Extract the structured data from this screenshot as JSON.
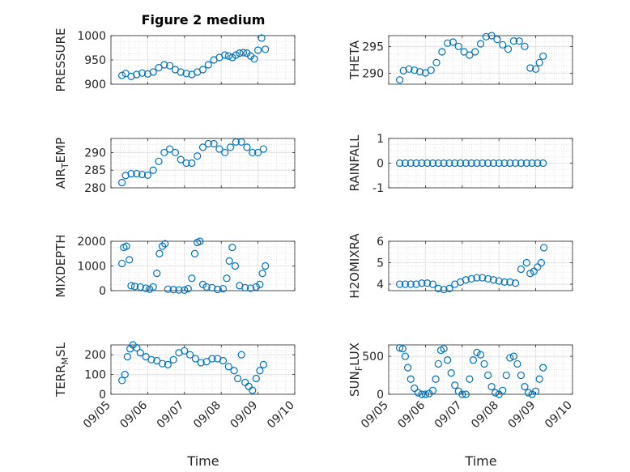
{
  "figure": {
    "xlabel": "Time",
    "xtick_labels": [
      "09/05",
      "09/06",
      "09/07",
      "09/08",
      "09/09",
      "09/10"
    ],
    "marker_color": "#0072BD"
  },
  "chart_data": [
    {
      "type": "scatter",
      "title": "Figure 2 medium",
      "ylabel": "PRESSURE",
      "ylim": [
        900,
        1000
      ],
      "yticks": [
        900,
        950,
        1000
      ],
      "xlim": [
        0,
        5
      ],
      "grid": true,
      "x": [
        0.3,
        0.4,
        0.55,
        0.7,
        0.85,
        1.0,
        1.15,
        1.3,
        1.45,
        1.6,
        1.75,
        1.9,
        2.05,
        2.2,
        2.35,
        2.5,
        2.65,
        2.8,
        2.95,
        3.1,
        3.2,
        3.3,
        3.4,
        3.5,
        3.6,
        3.7,
        3.8,
        3.9,
        4.0,
        4.1,
        4.2
      ],
      "y": [
        918,
        922,
        916,
        920,
        923,
        921,
        925,
        934,
        940,
        938,
        930,
        925,
        922,
        920,
        925,
        930,
        940,
        950,
        955,
        960,
        958,
        955,
        960,
        964,
        965,
        964,
        958,
        952,
        970,
        995,
        972
      ]
    },
    {
      "type": "scatter",
      "ylabel": "THETA",
      "ylim": [
        288,
        297
      ],
      "yticks": [
        290,
        295
      ],
      "xlim": [
        0,
        5
      ],
      "grid": true,
      "x": [
        0.3,
        0.4,
        0.55,
        0.7,
        0.85,
        1.0,
        1.15,
        1.3,
        1.45,
        1.6,
        1.75,
        1.9,
        2.05,
        2.2,
        2.35,
        2.5,
        2.65,
        2.8,
        2.95,
        3.1,
        3.25,
        3.4,
        3.55,
        3.7,
        3.85,
        4.0,
        4.1,
        4.2
      ],
      "y": [
        288.8,
        290.5,
        290.8,
        290.6,
        290.3,
        290.1,
        290.6,
        292.0,
        294.0,
        295.6,
        295.8,
        295.0,
        294.0,
        293.4,
        294.0,
        295.5,
        296.8,
        297.0,
        296.3,
        295.3,
        294.5,
        296.0,
        296.0,
        295.0,
        291.0,
        290.8,
        292.0,
        293.2
      ]
    },
    {
      "type": "scatter",
      "ylabel": "AIR_TEMP",
      "ylim": [
        280,
        294
      ],
      "yticks": [
        280,
        285,
        290
      ],
      "xlim": [
        0,
        5
      ],
      "grid": true,
      "x": [
        0.3,
        0.4,
        0.55,
        0.7,
        0.85,
        1.0,
        1.15,
        1.3,
        1.45,
        1.6,
        1.75,
        1.9,
        2.05,
        2.2,
        2.35,
        2.5,
        2.65,
        2.8,
        2.95,
        3.1,
        3.25,
        3.4,
        3.55,
        3.7,
        3.85,
        4.0,
        4.15
      ],
      "y": [
        281.5,
        283.5,
        284.0,
        284.0,
        283.8,
        283.6,
        285.0,
        287.5,
        290.0,
        291.0,
        290.0,
        288.0,
        287.0,
        287.0,
        289.0,
        291.5,
        292.5,
        292.5,
        291.0,
        290.0,
        291.5,
        293.0,
        293.0,
        291.5,
        290.0,
        290.0,
        291.0
      ]
    },
    {
      "type": "scatter",
      "ylabel": "RAINFALL",
      "ylim": [
        -1,
        1
      ],
      "yticks": [
        -1,
        0,
        1
      ],
      "xlim": [
        0,
        5
      ],
      "grid": true,
      "x": [
        0.3,
        0.45,
        0.6,
        0.75,
        0.9,
        1.05,
        1.2,
        1.35,
        1.5,
        1.65,
        1.8,
        1.95,
        2.1,
        2.25,
        2.4,
        2.55,
        2.7,
        2.85,
        3.0,
        3.15,
        3.3,
        3.45,
        3.6,
        3.75,
        3.9,
        4.05,
        4.2
      ],
      "y": [
        0,
        0,
        0,
        0,
        0,
        0,
        0,
        0,
        0,
        0,
        0,
        0,
        0,
        0,
        0,
        0,
        0,
        0,
        0,
        0,
        0,
        0,
        0,
        0,
        0,
        0,
        0
      ]
    },
    {
      "type": "scatter",
      "ylabel": "MIXDEPTH",
      "ylim": [
        0,
        2000
      ],
      "yticks": [
        0,
        1000,
        2000
      ],
      "xlim": [
        0,
        5
      ],
      "grid": true,
      "x": [
        0.3,
        0.35,
        0.42,
        0.5,
        0.55,
        0.65,
        0.8,
        0.95,
        1.05,
        1.15,
        1.25,
        1.32,
        1.4,
        1.47,
        1.55,
        1.7,
        1.85,
        2.0,
        2.1,
        2.2,
        2.28,
        2.35,
        2.42,
        2.5,
        2.6,
        2.75,
        2.9,
        3.05,
        3.15,
        3.22,
        3.3,
        3.38,
        3.5,
        3.65,
        3.8,
        3.95,
        4.05,
        4.12,
        4.2
      ],
      "y": [
        1100,
        1750,
        1800,
        1250,
        200,
        170,
        150,
        100,
        60,
        150,
        700,
        1500,
        1800,
        1900,
        60,
        40,
        30,
        20,
        80,
        500,
        1500,
        1950,
        2000,
        250,
        150,
        120,
        50,
        80,
        500,
        1200,
        1750,
        1000,
        200,
        120,
        100,
        150,
        250,
        700,
        1000
      ]
    },
    {
      "type": "scatter",
      "ylabel": "H2OMIXRA",
      "ylim": [
        3.7,
        6
      ],
      "yticks": [
        4,
        5,
        6
      ],
      "xlim": [
        0,
        5
      ],
      "grid": true,
      "x": [
        0.3,
        0.45,
        0.6,
        0.75,
        0.9,
        1.05,
        1.2,
        1.35,
        1.5,
        1.65,
        1.8,
        1.95,
        2.1,
        2.25,
        2.4,
        2.55,
        2.7,
        2.85,
        3.0,
        3.15,
        3.3,
        3.45,
        3.6,
        3.75,
        3.85,
        3.95,
        4.05,
        4.15,
        4.22
      ],
      "y": [
        4.0,
        4.0,
        4.0,
        4.0,
        4.05,
        4.05,
        4.0,
        3.8,
        3.75,
        3.8,
        4.0,
        4.1,
        4.2,
        4.25,
        4.3,
        4.3,
        4.25,
        4.2,
        4.15,
        4.1,
        4.1,
        4.05,
        4.7,
        5.0,
        4.5,
        4.6,
        4.8,
        5.0,
        5.7
      ]
    },
    {
      "type": "scatter",
      "ylabel": "TERR_MSL",
      "ylim": [
        0,
        250
      ],
      "yticks": [
        0,
        100,
        200
      ],
      "xlim": [
        0,
        5
      ],
      "grid": true,
      "x": [
        0.3,
        0.38,
        0.45,
        0.52,
        0.6,
        0.7,
        0.8,
        0.95,
        1.1,
        1.25,
        1.4,
        1.55,
        1.7,
        1.85,
        2.0,
        2.15,
        2.3,
        2.45,
        2.6,
        2.75,
        2.9,
        3.05,
        3.2,
        3.35,
        3.45,
        3.55,
        3.65,
        3.75,
        3.85,
        3.95,
        4.05,
        4.15
      ],
      "y": [
        70,
        100,
        190,
        230,
        250,
        235,
        210,
        190,
        175,
        170,
        155,
        150,
        175,
        210,
        220,
        200,
        180,
        160,
        165,
        180,
        180,
        170,
        140,
        120,
        80,
        200,
        60,
        40,
        20,
        80,
        120,
        150
      ]
    },
    {
      "type": "scatter",
      "ylabel": "SUN_FLUX",
      "ylim": [
        0,
        650
      ],
      "yticks": [
        0,
        500
      ],
      "xlim": [
        0,
        5
      ],
      "grid": true,
      "x": [
        0.3,
        0.38,
        0.45,
        0.52,
        0.6,
        0.7,
        0.8,
        0.9,
        1.0,
        1.1,
        1.2,
        1.28,
        1.35,
        1.42,
        1.5,
        1.6,
        1.7,
        1.8,
        1.9,
        2.0,
        2.1,
        2.2,
        2.3,
        2.4,
        2.5,
        2.6,
        2.7,
        2.8,
        2.9,
        3.0,
        3.1,
        3.2,
        3.3,
        3.4,
        3.5,
        3.6,
        3.7,
        3.8,
        3.9,
        4.0,
        4.1,
        4.2
      ],
      "y": [
        610,
        600,
        500,
        350,
        200,
        80,
        20,
        0,
        0,
        10,
        50,
        200,
        400,
        580,
        600,
        450,
        280,
        120,
        40,
        0,
        0,
        200,
        450,
        550,
        520,
        400,
        250,
        100,
        20,
        0,
        50,
        250,
        480,
        500,
        400,
        250,
        100,
        20,
        0,
        40,
        200,
        350
      ]
    }
  ]
}
